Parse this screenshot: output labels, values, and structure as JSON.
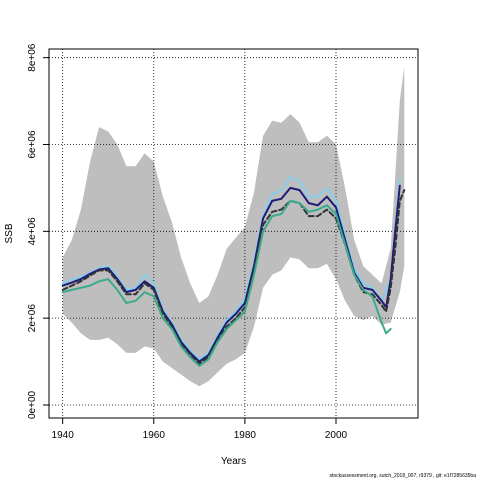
{
  "chart_data": {
    "type": "line",
    "xlabel": "Years",
    "ylabel": "SSB",
    "xlim": [
      1937,
      2018
    ],
    "ylim": [
      -300000,
      8200000
    ],
    "grid": "dotted",
    "x_ticks": [
      1940,
      1960,
      1980,
      2000
    ],
    "x_tick_labels": [
      "1940",
      "1960",
      "1980",
      "2000"
    ],
    "y_ticks": [
      0,
      2000000,
      4000000,
      6000000,
      8000000
    ],
    "y_tick_labels": [
      "0e+00",
      "2e+06",
      "4e+06",
      "6e+06",
      "8e+06"
    ],
    "band": {
      "color": "#bebebe",
      "x": [
        1940,
        1942,
        1944,
        1946,
        1948,
        1950,
        1952,
        1954,
        1956,
        1958,
        1960,
        1962,
        1964,
        1966,
        1968,
        1970,
        1972,
        1974,
        1976,
        1978,
        1980,
        1982,
        1984,
        1986,
        1988,
        1990,
        1992,
        1994,
        1996,
        1998,
        2000,
        2002,
        2004,
        2006,
        2008,
        2010,
        2012,
        2014,
        2015
      ],
      "upper": [
        3400000,
        3800000,
        4500000,
        5600000,
        6400000,
        6300000,
        6000000,
        5500000,
        5500000,
        5800000,
        5600000,
        4800000,
        4200000,
        3400000,
        2800000,
        2350000,
        2500000,
        3000000,
        3600000,
        3850000,
        4100000,
        4900000,
        6200000,
        6550000,
        6500000,
        6700000,
        6500000,
        6050000,
        6050000,
        6200000,
        6000000,
        5000000,
        3800000,
        3200000,
        3000000,
        2800000,
        3600000,
        7000000,
        7800000
      ],
      "lower": [
        2100000,
        1900000,
        1650000,
        1500000,
        1500000,
        1550000,
        1400000,
        1200000,
        1200000,
        1350000,
        1300000,
        1000000,
        850000,
        700000,
        550000,
        430000,
        550000,
        750000,
        950000,
        1050000,
        1200000,
        1800000,
        2700000,
        3000000,
        3100000,
        3400000,
        3350000,
        3150000,
        3150000,
        3250000,
        2900000,
        2400000,
        2050000,
        1950000,
        2050000,
        1850000,
        1900000,
        2600000,
        3200000
      ]
    },
    "series": [
      {
        "color": "#87ceeb",
        "dash": "",
        "x": [
          1940,
          1942,
          1944,
          1946,
          1948,
          1950,
          1952,
          1954,
          1956,
          1958,
          1960,
          1962,
          1964,
          1966,
          1968,
          1970,
          1972,
          1974,
          1976,
          1978,
          1980,
          1982,
          1984,
          1986,
          1988,
          1990,
          1992,
          1994,
          1996,
          1998,
          2000,
          2002,
          2004,
          2006,
          2008,
          2010,
          2012,
          2013,
          2014
        ],
        "values": [
          2800000,
          2900000,
          2950000,
          3050000,
          3150000,
          3200000,
          2950000,
          2650000,
          2700000,
          3000000,
          2800000,
          2200000,
          1900000,
          1500000,
          1250000,
          1050000,
          1200000,
          1600000,
          1950000,
          2150000,
          2450000,
          3300000,
          4350000,
          4850000,
          4950000,
          5250000,
          5150000,
          4800000,
          4800000,
          5000000,
          4700000,
          3900000,
          3150000,
          2800000,
          2700000,
          2400000,
          2900000,
          4000000,
          5200000
        ]
      },
      {
        "color": "#1e1b7a",
        "dash": "",
        "x": [
          1940,
          1942,
          1944,
          1946,
          1948,
          1950,
          1952,
          1954,
          1956,
          1958,
          1960,
          1962,
          1964,
          1966,
          1968,
          1970,
          1972,
          1974,
          1976,
          1978,
          1980,
          1982,
          1984,
          1986,
          1988,
          1990,
          1992,
          1994,
          1996,
          1998,
          2000,
          2002,
          2004,
          2006,
          2008,
          2010,
          2011,
          2012,
          2013,
          2014
        ],
        "values": [
          2750000,
          2820000,
          2900000,
          3020000,
          3120000,
          3150000,
          2900000,
          2600000,
          2650000,
          2850000,
          2700000,
          2150000,
          1850000,
          1450000,
          1200000,
          1000000,
          1150000,
          1550000,
          1900000,
          2100000,
          2350000,
          3200000,
          4300000,
          4700000,
          4750000,
          5000000,
          4950000,
          4650000,
          4600000,
          4800000,
          4550000,
          3800000,
          3050000,
          2700000,
          2650000,
          2400000,
          2250000,
          2900000,
          4000000,
          5050000
        ]
      },
      {
        "color": "#333333",
        "dash": "5,3",
        "x": [
          1940,
          1942,
          1944,
          1946,
          1948,
          1950,
          1952,
          1954,
          1956,
          1958,
          1960,
          1962,
          1964,
          1966,
          1968,
          1970,
          1972,
          1974,
          1976,
          1978,
          1980,
          1982,
          1984,
          1986,
          1988,
          1990,
          1992,
          1994,
          1996,
          1998,
          2000,
          2002,
          2004,
          2006,
          2008,
          2010,
          2011,
          2012,
          2013,
          2014,
          2015
        ],
        "values": [
          2650000,
          2750000,
          2850000,
          2980000,
          3100000,
          3100000,
          2850000,
          2550000,
          2550000,
          2800000,
          2650000,
          2100000,
          1800000,
          1400000,
          1150000,
          950000,
          1100000,
          1500000,
          1800000,
          2000000,
          2250000,
          3100000,
          4150000,
          4450000,
          4500000,
          4700000,
          4650000,
          4350000,
          4350000,
          4500000,
          4300000,
          3700000,
          3000000,
          2600000,
          2550000,
          2300000,
          2150000,
          2700000,
          3600000,
          4700000,
          4950000
        ]
      },
      {
        "color": "#3aaa8c",
        "dash": "",
        "x": [
          1940,
          1942,
          1944,
          1946,
          1948,
          1950,
          1952,
          1954,
          1956,
          1958,
          1960,
          1962,
          1964,
          1966,
          1968,
          1970,
          1972,
          1974,
          1976,
          1978,
          1980,
          1982,
          1984,
          1986,
          1988,
          1990,
          1992,
          1994,
          1996,
          1998,
          2000,
          2002,
          2004,
          2006,
          2008,
          2010,
          2011,
          2012
        ],
        "values": [
          2600000,
          2650000,
          2700000,
          2750000,
          2850000,
          2900000,
          2650000,
          2350000,
          2400000,
          2600000,
          2500000,
          2000000,
          1750000,
          1350000,
          1100000,
          900000,
          1050000,
          1450000,
          1750000,
          1950000,
          2150000,
          3000000,
          4000000,
          4350000,
          4400000,
          4700000,
          4650000,
          4450000,
          4500000,
          4600000,
          4400000,
          3700000,
          3000000,
          2650000,
          2500000,
          1900000,
          1650000,
          1750000
        ]
      }
    ]
  },
  "footer": "stockassessment.org, sutch_2018_007, r9379 , git: e1f7285635ba"
}
